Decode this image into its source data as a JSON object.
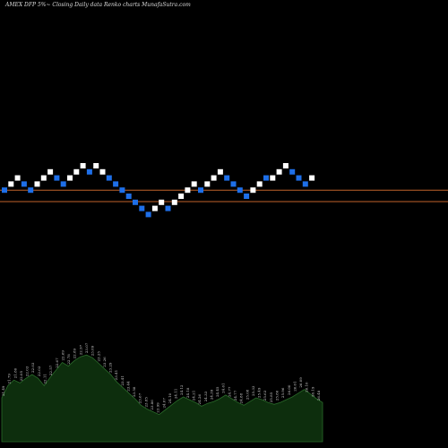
{
  "title": "AMEX DFP 5%~ Closing Daily data Renko charts MunafaSutra.com",
  "colors": {
    "background": "#000000",
    "brick_up": "#ffffff",
    "brick_down": "#1e6fe8",
    "level_line": "#c0622a",
    "volume_fill": "#0d2e0d",
    "volume_line": "#2a6a2a",
    "volume_label": "#d0d0d0"
  },
  "chart_data": [
    {
      "type": "renko",
      "brick_size_percent": 5,
      "grid": false,
      "reference_levels": [
        1.0,
        0.0
      ],
      "bricks": [
        {
          "dir": "down",
          "level": 1
        },
        {
          "dir": "up",
          "level": 2
        },
        {
          "dir": "up",
          "level": 3
        },
        {
          "dir": "down",
          "level": 2
        },
        {
          "dir": "down",
          "level": 1
        },
        {
          "dir": "up",
          "level": 2
        },
        {
          "dir": "up",
          "level": 3
        },
        {
          "dir": "up",
          "level": 4
        },
        {
          "dir": "down",
          "level": 3
        },
        {
          "dir": "down",
          "level": 2
        },
        {
          "dir": "up",
          "level": 3
        },
        {
          "dir": "up",
          "level": 4
        },
        {
          "dir": "up",
          "level": 5
        },
        {
          "dir": "down",
          "level": 4
        },
        {
          "dir": "up",
          "level": 5
        },
        {
          "dir": "up",
          "level": 4
        },
        {
          "dir": "down",
          "level": 3
        },
        {
          "dir": "down",
          "level": 2
        },
        {
          "dir": "down",
          "level": 1
        },
        {
          "dir": "down",
          "level": 0
        },
        {
          "dir": "down",
          "level": -1
        },
        {
          "dir": "down",
          "level": -2
        },
        {
          "dir": "down",
          "level": -3
        },
        {
          "dir": "up",
          "level": -2
        },
        {
          "dir": "up",
          "level": -1
        },
        {
          "dir": "down",
          "level": -2
        },
        {
          "dir": "up",
          "level": -1
        },
        {
          "dir": "up",
          "level": 0
        },
        {
          "dir": "up",
          "level": 1
        },
        {
          "dir": "up",
          "level": 2
        },
        {
          "dir": "down",
          "level": 1
        },
        {
          "dir": "up",
          "level": 2
        },
        {
          "dir": "up",
          "level": 3
        },
        {
          "dir": "up",
          "level": 4
        },
        {
          "dir": "down",
          "level": 3
        },
        {
          "dir": "down",
          "level": 2
        },
        {
          "dir": "down",
          "level": 1
        },
        {
          "dir": "down",
          "level": 0
        },
        {
          "dir": "up",
          "level": 1
        },
        {
          "dir": "up",
          "level": 2
        },
        {
          "dir": "down",
          "level": 3
        },
        {
          "dir": "up",
          "level": 3
        },
        {
          "dir": "up",
          "level": 4
        },
        {
          "dir": "up",
          "level": 5
        },
        {
          "dir": "down",
          "level": 4
        },
        {
          "dir": "down",
          "level": 3
        },
        {
          "dir": "down",
          "level": 2
        },
        {
          "dir": "up",
          "level": 3
        }
      ]
    },
    {
      "type": "area",
      "label_font_size": 4,
      "values": [
        21.5,
        22.8,
        23.4,
        23.1,
        23.6,
        24.0,
        23.6,
        22.8,
        23.7,
        24.5,
        25.3,
        24.9,
        25.5,
        25.9,
        26.1,
        25.8,
        25.2,
        24.6,
        24.0,
        23.2,
        22.6,
        22.0,
        21.4,
        20.7,
        20.3,
        20.0,
        19.7,
        20.2,
        20.7,
        21.2,
        21.6,
        21.3,
        21.0,
        20.6,
        20.9,
        21.1,
        21.4,
        21.8,
        21.4,
        21.0,
        20.7,
        21.1,
        21.5,
        21.3,
        21.0,
        20.8,
        21.0,
        21.3,
        21.6,
        22.0,
        22.4,
        21.9,
        21.4,
        21.0
      ],
      "labels": [
        "21.49",
        "21.79",
        "21.86",
        "22.05",
        "22.03",
        "22.03",
        "22.03",
        "22.11",
        "22.57",
        "22.67",
        "22.69",
        "22.78",
        "22.89",
        "22.97",
        "23.07",
        "23.09",
        "23.25",
        "23.26",
        "23.29",
        "23.41",
        "23.41",
        "23.44",
        "23.58",
        "23.67",
        "23.85",
        "23.86",
        "23.99",
        "24.07",
        "24.10",
        "24.11",
        "24.12",
        "24.18",
        "24.21",
        "24.26",
        "24.33",
        "24.39",
        "24.45",
        "24.61",
        "24.77",
        "24.77",
        "24.88",
        "25.08",
        "25.33",
        "25.49",
        "25.63",
        "25.85",
        "25.86",
        "25.96",
        "26.00",
        "26.01",
        "26.09",
        "26.10",
        "26.19",
        "26.48"
      ]
    }
  ]
}
